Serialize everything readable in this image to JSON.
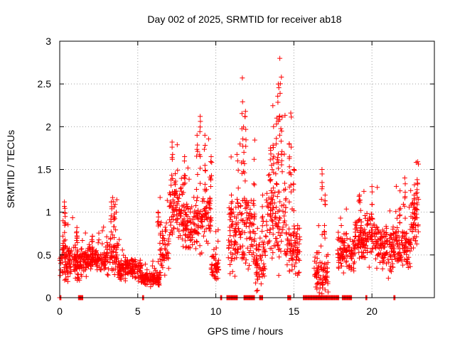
{
  "chart_data": {
    "type": "scatter",
    "title": "Day 002 of 2025, SRMTID for receiver ab18",
    "xlabel": "GPS time / hours",
    "ylabel": "SRMTID / TECUs",
    "xlim": [
      0,
      24
    ],
    "ylim": [
      0,
      3
    ],
    "xticks": [
      0,
      5,
      10,
      15,
      20
    ],
    "yticks": [
      0,
      0.5,
      1,
      1.5,
      2,
      2.5,
      3
    ],
    "xtick_labels": [
      "0",
      "5",
      "10",
      "15",
      "20"
    ],
    "ytick_labels": [
      "0",
      "0.5",
      "1",
      "1.5",
      "2",
      "2.5",
      "3"
    ],
    "grid": true,
    "marker": "+",
    "series": [
      {
        "name": "SRMTID",
        "color": "#ff0000",
        "segments": [
          {
            "x": [
              0.0,
              1.4
            ],
            "level": 0.4,
            "spread": 0.18,
            "peaks": [
              [
                0.2,
                0.72
              ],
              [
                0.3,
                1.12
              ],
              [
                0.35,
                0.95
              ]
            ]
          },
          {
            "x": [
              1.4,
              3.0
            ],
            "level": 0.45,
            "spread": 0.14,
            "peaks": [
              [
                1.1,
                0.82
              ],
              [
                2.1,
                0.72
              ]
            ]
          },
          {
            "x": [
              3.0,
              3.7
            ],
            "level": 0.52,
            "spread": 0.22,
            "peaks": [
              [
                3.3,
                1.12
              ],
              [
                3.5,
                0.98
              ]
            ]
          },
          {
            "x": [
              3.7,
              5.2
            ],
            "level": 0.33,
            "spread": 0.12,
            "peaks": []
          },
          {
            "x": [
              5.2,
              6.4
            ],
            "level": 0.22,
            "spread": 0.08,
            "peaks": []
          },
          {
            "x": [
              6.4,
              7.0
            ],
            "level": 0.55,
            "spread": 0.3,
            "peaks": [
              [
                6.3,
                1.0
              ]
            ]
          },
          {
            "x": [
              7.0,
              7.8
            ],
            "level": 1.05,
            "spread": 0.35,
            "peaks": [
              [
                7.2,
                1.82
              ],
              [
                7.4,
                1.45
              ]
            ]
          },
          {
            "x": [
              7.8,
              9.1
            ],
            "level": 0.85,
            "spread": 0.25,
            "peaks": [
              [
                8.0,
                1.65
              ],
              [
                8.8,
                1.9
              ],
              [
                9.0,
                2.12
              ]
            ]
          },
          {
            "x": [
              9.1,
              9.7
            ],
            "level": 1.0,
            "spread": 0.3,
            "peaks": [
              [
                9.3,
                1.9
              ],
              [
                9.7,
                1.65
              ]
            ]
          },
          {
            "x": [
              9.7,
              10.2
            ],
            "level": 0.35,
            "spread": 0.15,
            "peaks": []
          },
          {
            "x": [
              10.8,
              11.5
            ],
            "level": 0.7,
            "spread": 0.35,
            "peaks": [
              [
                11.0,
                1.2
              ],
              [
                11.4,
                1.6
              ]
            ]
          },
          {
            "x": [
              11.5,
              12.5
            ],
            "level": 0.8,
            "spread": 0.4,
            "peaks": [
              [
                11.7,
                2.57
              ],
              [
                11.9,
                2.18
              ],
              [
                11.8,
                1.7
              ]
            ]
          },
          {
            "x": [
              12.5,
              13.2
            ],
            "level": 0.45,
            "spread": 0.3,
            "peaks": [
              [
                13.0,
                1.2
              ]
            ]
          },
          {
            "x": [
              13.2,
              13.8
            ],
            "level": 1.0,
            "spread": 0.45,
            "peaks": [
              [
                13.5,
                1.75
              ],
              [
                13.7,
                2.0
              ]
            ]
          },
          {
            "x": [
              13.8,
              14.5
            ],
            "level": 0.9,
            "spread": 0.5,
            "peaks": [
              [
                14.0,
                2.5
              ],
              [
                14.1,
                2.8
              ],
              [
                14.2,
                2.58
              ],
              [
                13.9,
                2.1
              ]
            ]
          },
          {
            "x": [
              14.5,
              15.4
            ],
            "level": 0.55,
            "spread": 0.35,
            "peaks": [
              [
                14.8,
                2.16
              ],
              [
                14.7,
                1.8
              ],
              [
                15.0,
                1.5
              ]
            ]
          },
          {
            "x": [
              16.3,
              17.2
            ],
            "level": 0.25,
            "spread": 0.2,
            "peaks": [
              [
                16.8,
                1.5
              ],
              [
                17.0,
                1.2
              ]
            ]
          },
          {
            "x": [
              17.8,
              18.9
            ],
            "level": 0.5,
            "spread": 0.2,
            "peaks": []
          },
          {
            "x": [
              18.9,
              20.3
            ],
            "level": 0.7,
            "spread": 0.25,
            "peaks": [
              [
                19.2,
                1.2
              ],
              [
                20.0,
                1.3
              ]
            ]
          },
          {
            "x": [
              20.3,
              22.5
            ],
            "level": 0.6,
            "spread": 0.25,
            "peaks": [
              [
                21.8,
                1.25
              ],
              [
                22.1,
                1.4
              ]
            ]
          },
          {
            "x": [
              22.5,
              23.0
            ],
            "level": 0.85,
            "spread": 0.3,
            "peaks": [
              [
                22.9,
                1.38
              ],
              [
                22.7,
                1.2
              ]
            ]
          }
        ],
        "zero_runs": [
          [
            0.0,
            0.1
          ],
          [
            1.2,
            1.5
          ],
          [
            5.3,
            5.4
          ],
          [
            10.3,
            10.4
          ],
          [
            10.7,
            11.4
          ],
          [
            11.8,
            12.5
          ],
          [
            12.8,
            13.0
          ],
          [
            14.6,
            14.8
          ],
          [
            15.6,
            17.9
          ],
          [
            18.1,
            18.7
          ],
          [
            19.6,
            19.7
          ],
          [
            21.4,
            21.5
          ]
        ]
      }
    ]
  }
}
